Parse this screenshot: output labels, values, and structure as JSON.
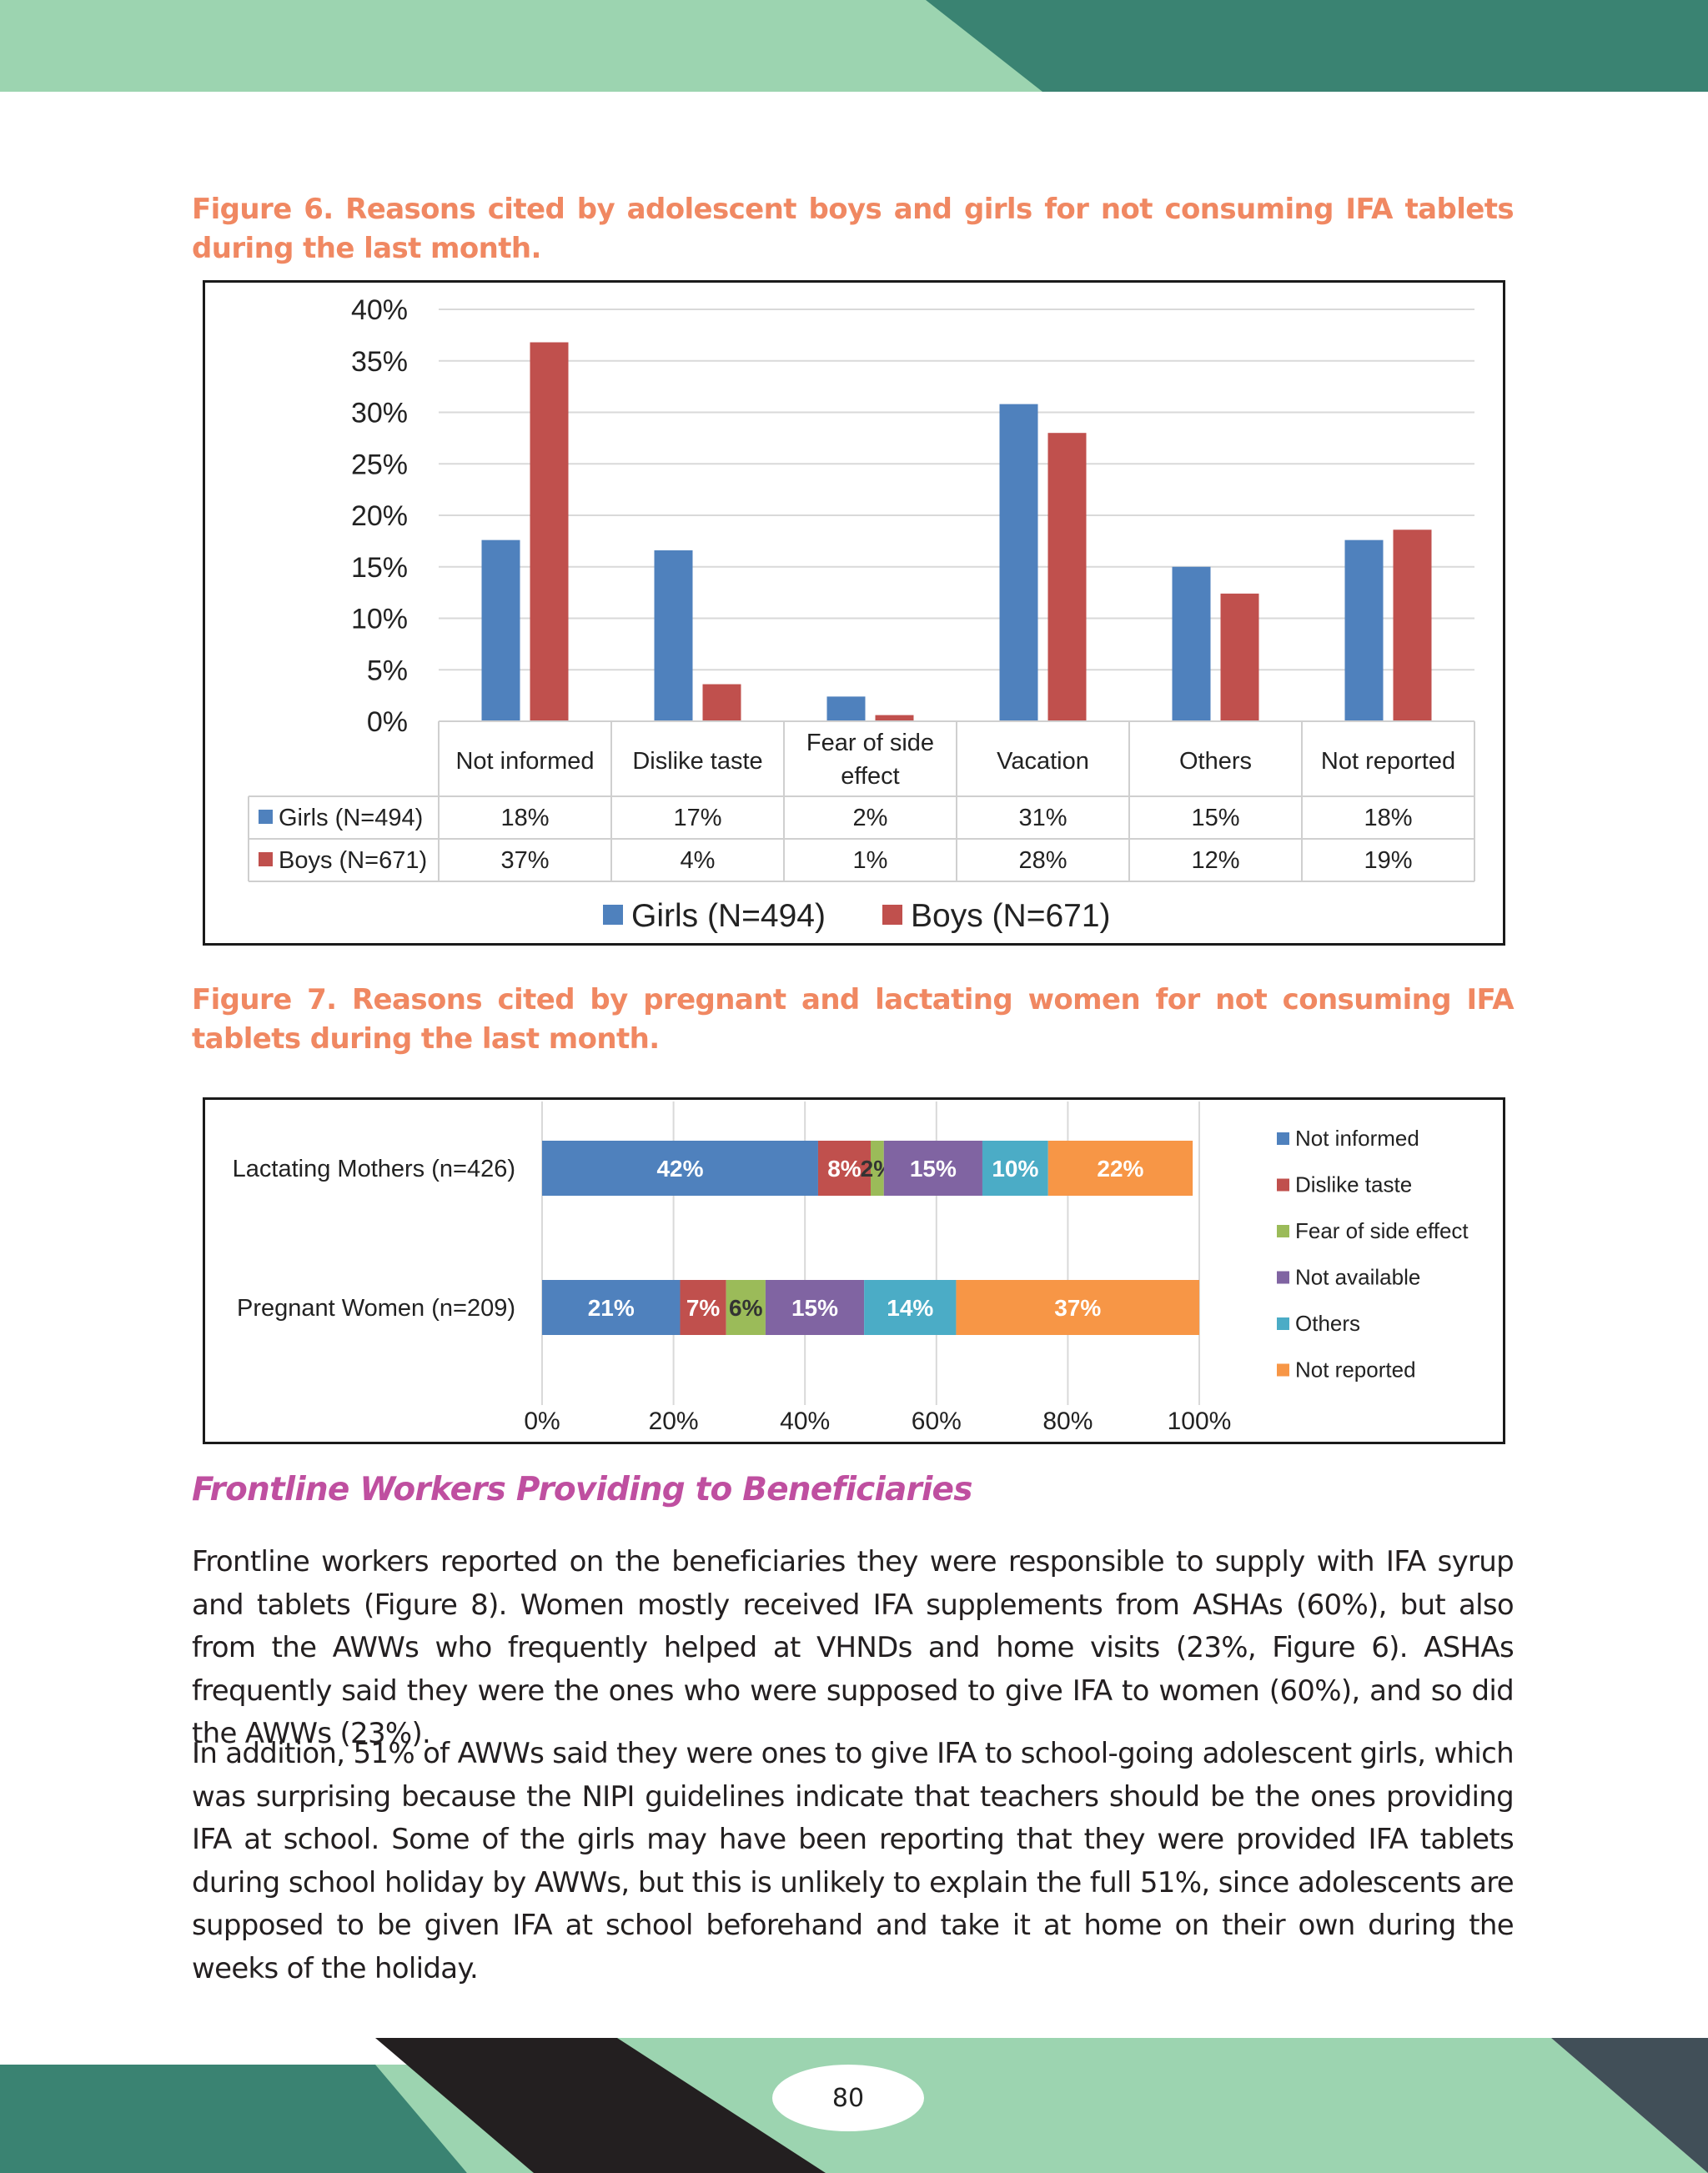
{
  "colors": {
    "band_light": "#9cd4b0",
    "band_dark": "#3a8372",
    "band_black": "#231f20",
    "band_slate": "#414f58",
    "caption": "#f08862",
    "heading": "#bf4fa0",
    "girls": "#4f81bd",
    "boys": "#c0504d",
    "not_informed": "#4f81bd",
    "dislike_taste": "#c0504d",
    "fear_of_side_effect": "#9bbb59",
    "not_available": "#8064a2",
    "others": "#4bacc6",
    "not_reported": "#f79646"
  },
  "figure6": {
    "caption": "Figure 6. Reasons cited by adolescent boys and girls for not consuming IFA tablets during the last month."
  },
  "figure7": {
    "caption": "Figure 7. Reasons cited by pregnant and lactating women for not consuming IFA tablets during the last month."
  },
  "section": {
    "heading": "Frontline Workers Providing to Beneficiaries"
  },
  "body": {
    "p1": "Frontline workers reported on the beneficiaries they were responsible to supply with IFA syrup and tablets (Figure 8). Women mostly received IFA supplements from ASHAs (60%), but also from the AWWs who frequently helped at VHNDs and home visits (23%, Figure 6). ASHAs frequently said they were the ones who were supposed to give IFA to women (60%), and so did the AWWs (23%).",
    "p2": "In addition, 51% of AWWs said they were ones to give IFA to school-going adolescent girls, which was surprising because the NIPI guidelines indicate that teachers should be the ones providing IFA at school. Some of the girls may have been reporting that they were provided IFA tablets during school holiday by AWWs, but this is unlikely to explain the full 51%, since adolescents are supposed to be given IFA at school beforehand and take it at home on their own during the weeks of the holiday."
  },
  "page": {
    "number": "80"
  },
  "chart_data": [
    {
      "type": "bar",
      "categories": [
        "Not informed",
        "Dislike taste",
        "Fear of side effect",
        "Vacation",
        "Others",
        "Not  reported"
      ],
      "series": [
        {
          "name": "Girls (N=494)",
          "values": [
            17.6,
            16.6,
            2.4,
            30.8,
            15.0,
            17.6
          ],
          "labels": [
            "18%",
            "17%",
            "2%",
            "31%",
            "15%",
            "18%"
          ]
        },
        {
          "name": "Boys (N=671)",
          "values": [
            36.8,
            3.6,
            0.6,
            28.0,
            12.4,
            18.6
          ],
          "labels": [
            "37%",
            "4%",
            "1%",
            "28%",
            "12%",
            "19%"
          ]
        }
      ],
      "y_ticks": [
        "0%",
        "5%",
        "10%",
        "15%",
        "20%",
        "25%",
        "30%",
        "35%",
        "40%"
      ],
      "ylim": [
        0,
        40
      ],
      "grid": true,
      "data_table": true,
      "legend": "bottom"
    },
    {
      "type": "bar",
      "orientation": "horizontal",
      "stacked": true,
      "categories": [
        "Lactating Mothers (n=426)",
        "Pregnant Women (n=209)"
      ],
      "series": [
        {
          "name": "Not informed",
          "values": [
            42,
            21
          ],
          "labels": [
            "42%",
            "21%"
          ]
        },
        {
          "name": "Dislike taste",
          "values": [
            8,
            7
          ],
          "labels": [
            "8%",
            "7%"
          ]
        },
        {
          "name": "Fear of side effect",
          "values": [
            2,
            6
          ],
          "labels": [
            "2%",
            "6%"
          ]
        },
        {
          "name": "Not available",
          "values": [
            15,
            15
          ],
          "labels": [
            "15%",
            "15%"
          ]
        },
        {
          "name": "Others",
          "values": [
            10,
            14
          ],
          "labels": [
            "10%",
            "14%"
          ]
        },
        {
          "name": "Not  reported",
          "values": [
            22,
            37
          ],
          "labels": [
            "22%",
            "37%"
          ]
        }
      ],
      "x_ticks": [
        "0%",
        "20%",
        "40%",
        "60%",
        "80%",
        "100%"
      ],
      "xlim": [
        0,
        100
      ],
      "grid": true,
      "legend": "right"
    }
  ]
}
